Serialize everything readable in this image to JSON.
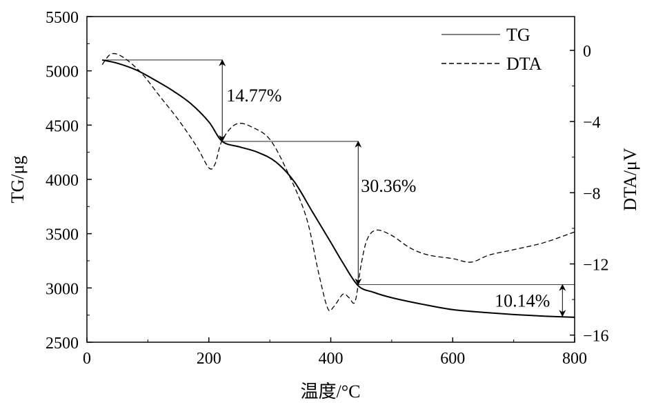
{
  "chart_data": {
    "type": "line",
    "xlabel": "温度/°C",
    "ylabel_left": "TG/μg",
    "ylabel_right": "DTA/μV",
    "xlim": [
      0,
      800
    ],
    "ylim_left": [
      2500,
      5500
    ],
    "ylim_right": [
      -16.4,
      1.9
    ],
    "grid": false,
    "legend_position": "top-right",
    "x_ticks": [
      0,
      200,
      400,
      600,
      800
    ],
    "y_left_ticks": [
      2500,
      3000,
      3500,
      4000,
      4500,
      5000,
      5500
    ],
    "y_right_ticks": [
      0,
      -4,
      -8,
      -12,
      -16
    ],
    "series": [
      {
        "name": "TG",
        "axis": "left",
        "style": "solid",
        "color": "#000000",
        "x": [
          25,
          50,
          80,
          110,
          140,
          170,
          200,
          222,
          250,
          280,
          310,
          340,
          370,
          400,
          420,
          445,
          470,
          500,
          550,
          600,
          650,
          700,
          750,
          800
        ],
        "y": [
          5100,
          5070,
          5010,
          4920,
          4820,
          4700,
          4530,
          4350,
          4300,
          4250,
          4160,
          3980,
          3700,
          3420,
          3230,
          3020,
          2960,
          2910,
          2850,
          2800,
          2775,
          2755,
          2740,
          2730
        ]
      },
      {
        "name": "DTA",
        "axis": "right",
        "style": "dashed",
        "color": "#000000",
        "x": [
          25,
          40,
          60,
          90,
          120,
          150,
          180,
          200,
          210,
          220,
          235,
          250,
          270,
          300,
          330,
          360,
          380,
          395,
          405,
          420,
          430,
          440,
          450,
          460,
          475,
          500,
          530,
          560,
          600,
          630,
          660,
          700,
          750,
          800
        ],
        "y": [
          -0.8,
          -0.2,
          -0.4,
          -1.3,
          -2.6,
          -3.9,
          -5.4,
          -6.6,
          -6.4,
          -5.2,
          -4.4,
          -4.1,
          -4.3,
          -5.0,
          -6.9,
          -9.4,
          -12.5,
          -14.5,
          -14.4,
          -13.7,
          -13.9,
          -14.1,
          -12.0,
          -10.6,
          -10.1,
          -10.4,
          -11.1,
          -11.5,
          -11.7,
          -11.9,
          -11.5,
          -11.2,
          -10.8,
          -10.2
        ]
      }
    ],
    "annotations": [
      {
        "label": "14.77%",
        "x": 222,
        "from": 5100,
        "to": 4350
      },
      {
        "label": "30.36%",
        "x": 445,
        "from": 4350,
        "to": 3030
      },
      {
        "label": "10.14%",
        "x": 780,
        "from": 3030,
        "to": 2740
      }
    ]
  }
}
